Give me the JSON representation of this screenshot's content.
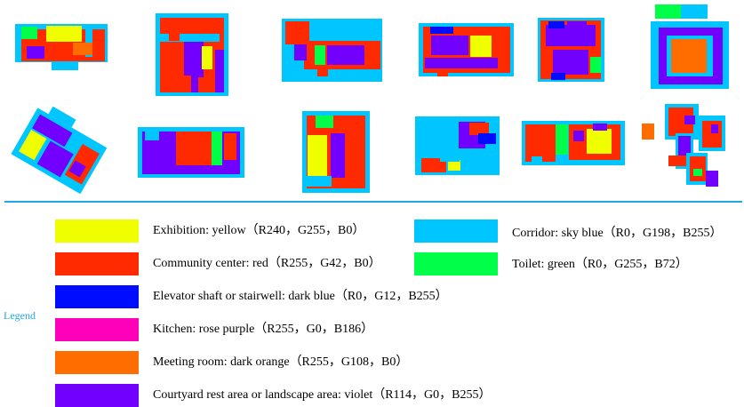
{
  "legend": {
    "title": "Legend",
    "items": [
      {
        "key": "exhibition",
        "label": "Exhibition: yellow（R240，G255，B0）",
        "color": "#f0ff00"
      },
      {
        "key": "community",
        "label": "Community center: red（R255，G42，B0）",
        "color": "#ff2a00"
      },
      {
        "key": "elevator",
        "label": "Elevator shaft or stairwell: dark blue（R0，G12，B255）",
        "color": "#000cff"
      },
      {
        "key": "kitchen",
        "label": "Kitchen: rose purple（R255，G0，B186）",
        "color": "#ff00ba"
      },
      {
        "key": "meeting",
        "label": "Meeting room: dark orange（R255，G108，B0）",
        "color": "#ff6c00"
      },
      {
        "key": "courtyard",
        "label": "Courtyard rest area or landscape area: violet（R114，G0，B255）",
        "color": "#7200ff"
      },
      {
        "key": "corridor",
        "label": "Corridor: sky blue（R0，G198，B255）",
        "color": "#00c6ff"
      },
      {
        "key": "toilet",
        "label": "Toilet: green（R0，G255，B72）",
        "color": "#00ff48"
      }
    ]
  }
}
